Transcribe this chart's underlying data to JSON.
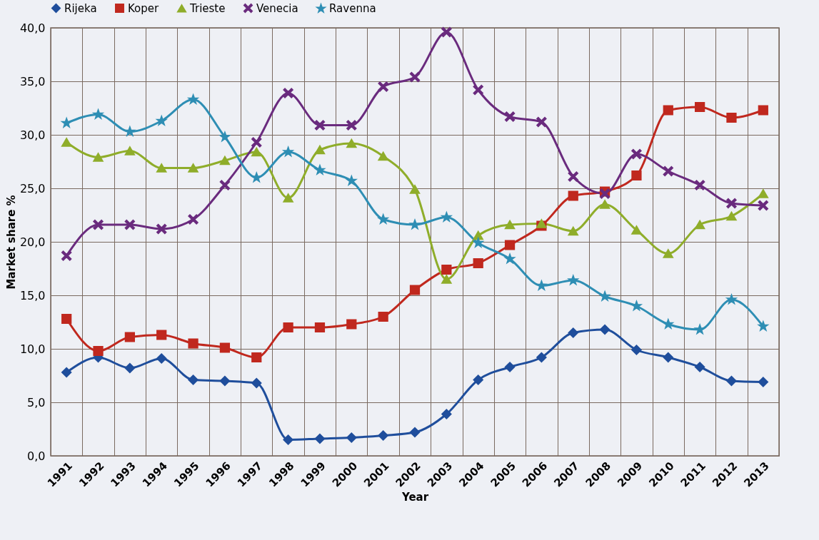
{
  "chart_data": {
    "type": "line",
    "xlabel": "Year",
    "ylabel": "Market share %",
    "categories": [
      "1991",
      "1992",
      "1993",
      "1994",
      "1995",
      "1996",
      "1997",
      "1998",
      "1999",
      "2000",
      "2001",
      "2002",
      "2003",
      "2004",
      "2005",
      "2006",
      "2007",
      "2008",
      "2009",
      "2010",
      "2011",
      "2012",
      "2013"
    ],
    "series": [
      {
        "name": "Rijeka",
        "color": "#1f4e9c",
        "marker": "diamond",
        "values": [
          7.8,
          9.2,
          8.2,
          9.1,
          7.1,
          7.0,
          6.8,
          1.5,
          1.6,
          1.7,
          1.9,
          2.2,
          3.9,
          7.1,
          8.3,
          9.2,
          11.5,
          11.8,
          9.9,
          9.2,
          8.3,
          7.0,
          6.9
        ]
      },
      {
        "name": "Koper",
        "color": "#c0281e",
        "marker": "square",
        "values": [
          12.8,
          9.8,
          11.1,
          11.3,
          10.5,
          10.1,
          9.2,
          12.0,
          12.0,
          12.3,
          13.0,
          15.5,
          17.4,
          18.0,
          19.7,
          21.5,
          24.3,
          24.7,
          26.2,
          32.3,
          32.6,
          31.6,
          32.3
        ]
      },
      {
        "name": "Trieste",
        "color": "#8fad2a",
        "marker": "triangle",
        "values": [
          29.3,
          27.9,
          28.5,
          26.9,
          26.9,
          27.6,
          28.4,
          24.1,
          28.6,
          29.2,
          28.0,
          24.9,
          16.5,
          20.6,
          21.6,
          21.7,
          21.0,
          23.5,
          21.1,
          18.9,
          21.6,
          22.4,
          24.5
        ]
      },
      {
        "name": "Venecia",
        "color": "#6a2b7e",
        "marker": "cross",
        "values": [
          18.7,
          21.6,
          21.6,
          21.2,
          22.1,
          25.3,
          29.3,
          33.9,
          30.9,
          30.9,
          34.5,
          35.4,
          39.6,
          34.2,
          31.7,
          31.2,
          26.1,
          24.5,
          28.2,
          26.6,
          25.3,
          23.6,
          23.4
        ]
      },
      {
        "name": "Ravenna",
        "color": "#2e8eb4",
        "marker": "star",
        "values": [
          31.1,
          31.9,
          30.3,
          31.3,
          33.3,
          29.8,
          26.0,
          28.4,
          26.7,
          25.7,
          22.1,
          21.6,
          22.3,
          19.9,
          18.4,
          15.9,
          16.4,
          14.9,
          14.0,
          12.3,
          11.8,
          14.6,
          12.1
        ]
      }
    ],
    "ylim": [
      0,
      40
    ],
    "yticks": [
      {
        "value": 0,
        "label": "0,0"
      },
      {
        "value": 5,
        "label": "5,0"
      },
      {
        "value": 10,
        "label": "10,0"
      },
      {
        "value": 15,
        "label": "15,0"
      },
      {
        "value": 20,
        "label": "20,0"
      },
      {
        "value": 25,
        "label": "25,0"
      },
      {
        "value": 30,
        "label": "30,0"
      },
      {
        "value": 35,
        "label": "35,0"
      },
      {
        "value": 40,
        "label": "40,0"
      }
    ],
    "grid": true,
    "legend": "top"
  }
}
